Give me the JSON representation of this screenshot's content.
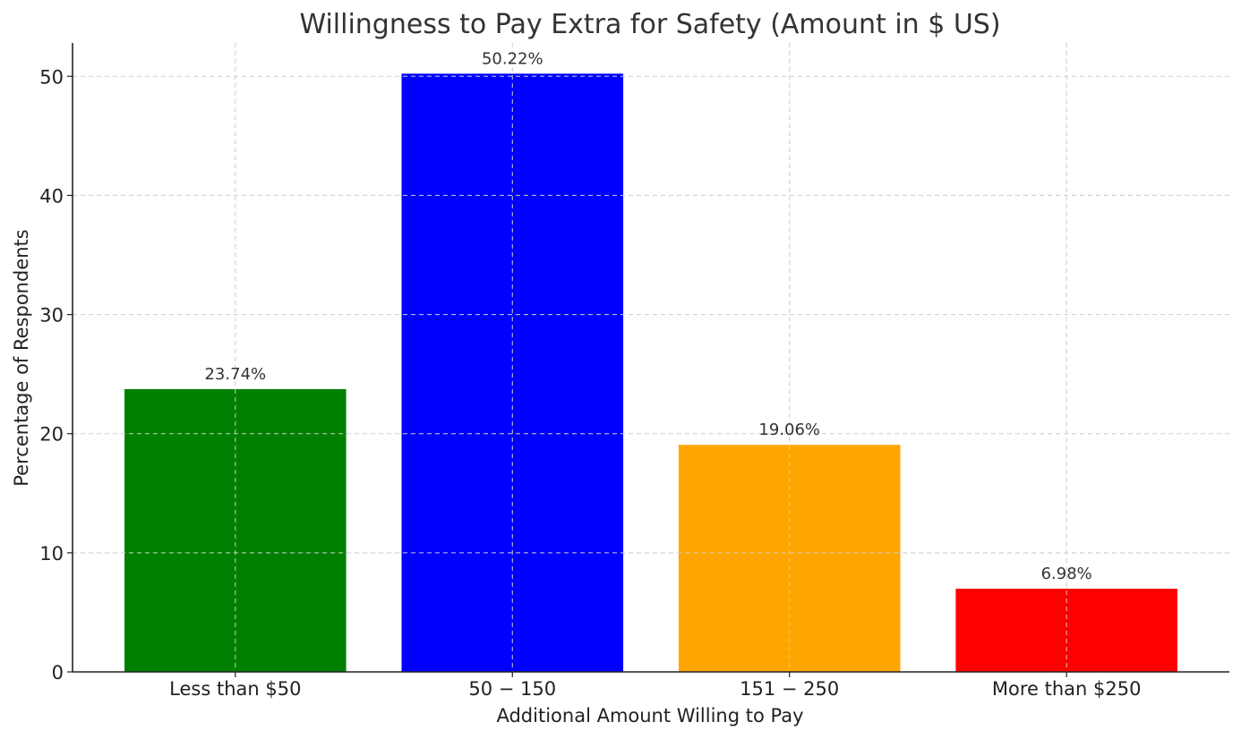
{
  "chart_data": {
    "type": "bar",
    "title": "Willingness to Pay Extra for Safety (Amount in $ US)",
    "xlabel": "Additional Amount Willing to Pay",
    "ylabel": "Percentage of Respondents",
    "categories": [
      "Less than $50",
      "50 − 150",
      "151 − 250",
      "More than $250"
    ],
    "values": [
      23.74,
      50.22,
      19.06,
      6.98
    ],
    "value_labels": [
      "23.74%",
      "50.22%",
      "19.06%",
      "6.98%"
    ],
    "colors": [
      "#008000",
      "#0000ff",
      "#ffa500",
      "#ff0000"
    ],
    "ylim": [
      0,
      52.8
    ],
    "yticks": [
      0,
      10,
      20,
      30,
      40,
      50
    ],
    "grid": true,
    "grid_style": "dashed"
  }
}
